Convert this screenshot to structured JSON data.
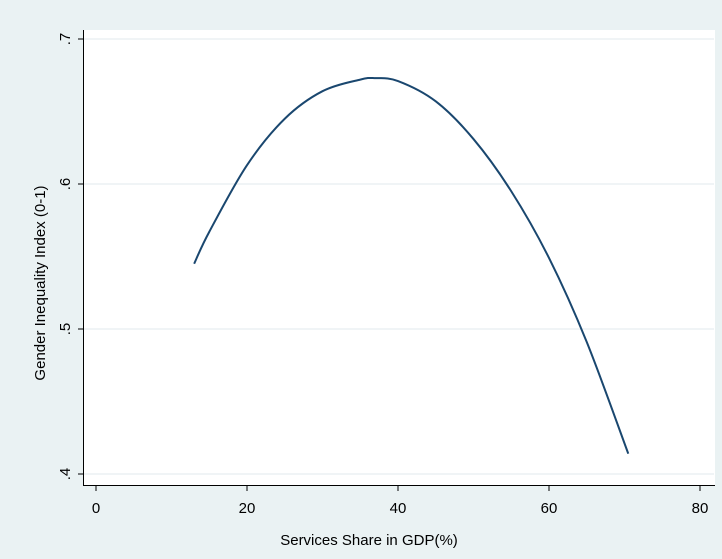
{
  "chart_data": {
    "type": "line",
    "title": "",
    "xlabel": "Services Share in GDP(%)",
    "ylabel": "Gender Inequality Index (0-1)",
    "xlim": [
      0,
      80
    ],
    "ylim": [
      0.4,
      0.7
    ],
    "x_ticks": [
      0,
      20,
      40,
      60,
      80
    ],
    "x_tick_labels": [
      "0",
      "20",
      "40",
      "60",
      "80"
    ],
    "y_ticks": [
      0.4,
      0.5,
      0.6,
      0.7
    ],
    "y_tick_labels": [
      ".4",
      ".5",
      ".6",
      ".7"
    ],
    "grid": true,
    "legend": "none",
    "series": [
      {
        "x": [
          13,
          15,
          20,
          25,
          30,
          35,
          37,
          40,
          45,
          50,
          55,
          60,
          65,
          70.5
        ],
        "y": [
          0.545,
          0.567,
          0.613,
          0.645,
          0.664,
          0.672,
          0.673,
          0.671,
          0.657,
          0.631,
          0.595,
          0.549,
          0.491,
          0.414
        ]
      }
    ],
    "colors": {
      "background": "#eaf2f3",
      "plot_area": "#ffffff",
      "grid": "#e6eef0",
      "line": "#1a476f"
    }
  }
}
